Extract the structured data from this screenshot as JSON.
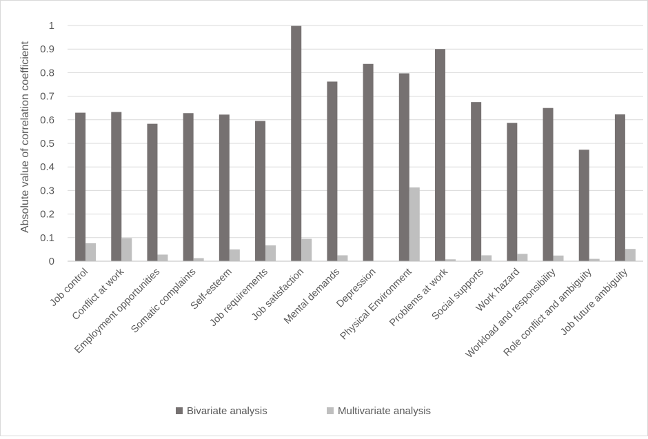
{
  "chart_data": {
    "type": "bar",
    "title": "",
    "xlabel": "",
    "ylabel": "Absolute value of correlation coefficient",
    "ylim": [
      0,
      1
    ],
    "yticks": [
      0,
      0.1,
      0.2,
      0.3,
      0.4,
      0.5,
      0.6,
      0.7,
      0.8,
      0.9,
      1
    ],
    "grid": true,
    "legend_position": "bottom",
    "categories": [
      "Job control",
      "Conflict at work",
      "Employment opportunities",
      "Somatic complaints",
      "Self-esteem",
      "Job requirements",
      "Job satisfaction",
      "Mental demands",
      "Depression",
      "Physical Environment",
      "Problems at work",
      "Social supports",
      "Work hazard",
      "Workload and responsibility",
      "Role conflict and ambiguity",
      "Job future ambiguity"
    ],
    "series": [
      {
        "name": "Bivariate analysis",
        "color": "#767171",
        "values": [
          0.63,
          0.633,
          0.583,
          0.628,
          0.622,
          0.595,
          0.998,
          0.762,
          0.837,
          0.797,
          0.9,
          0.675,
          0.587,
          0.65,
          0.473,
          0.623
        ]
      },
      {
        "name": "Multivariate analysis",
        "color": "#bfbfbf",
        "values": [
          0.076,
          0.098,
          0.028,
          0.013,
          0.05,
          0.067,
          0.095,
          0.025,
          0,
          0.313,
          0.008,
          0.025,
          0.031,
          0.024,
          0.01,
          0.052
        ]
      }
    ]
  }
}
